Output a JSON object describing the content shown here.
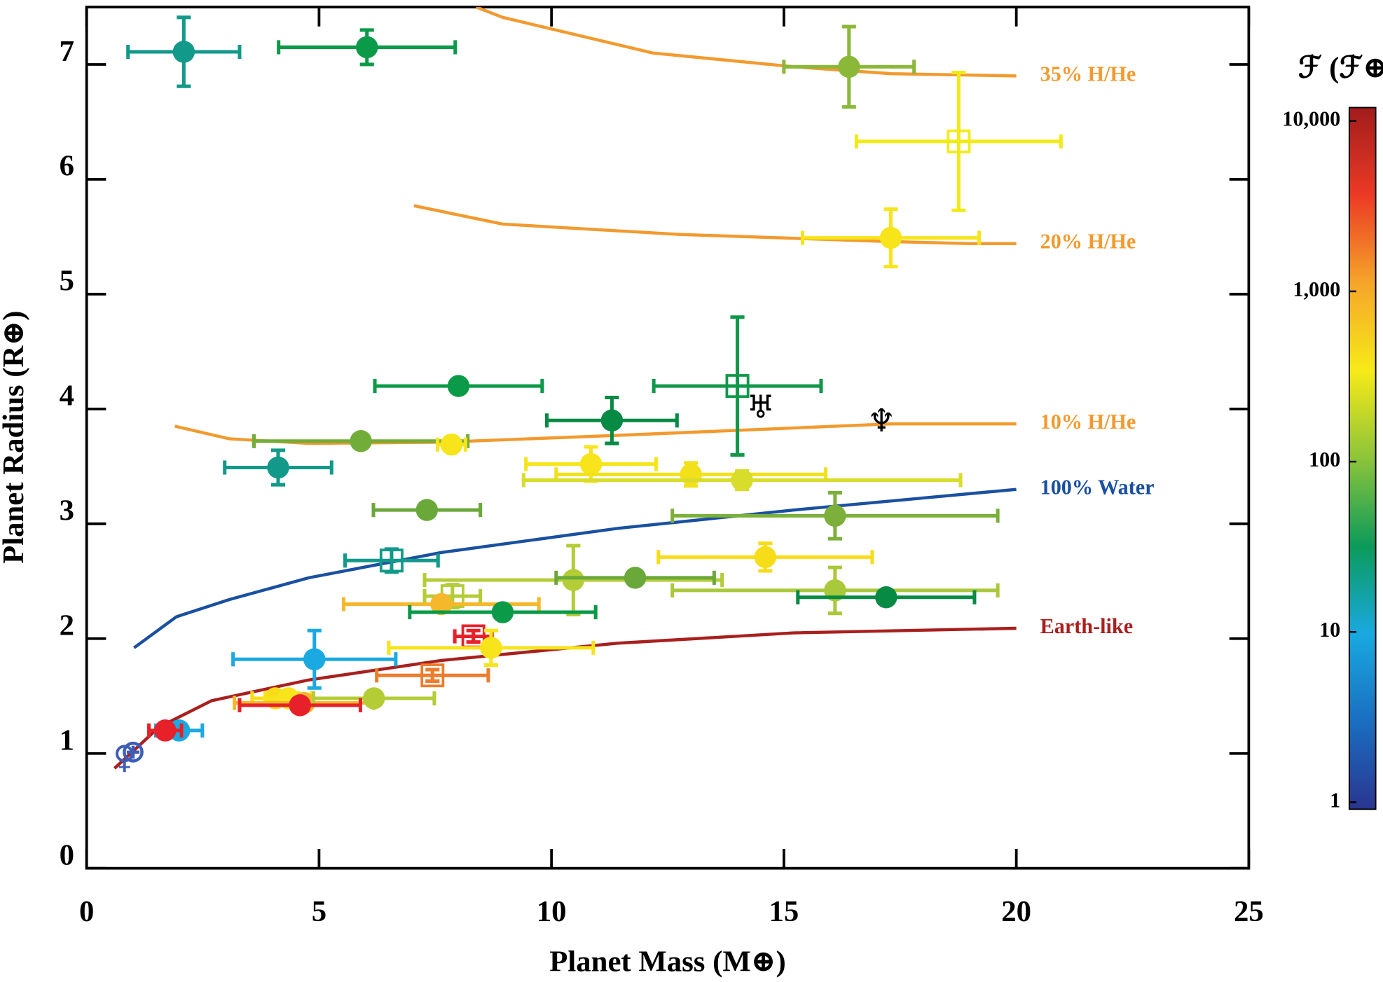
{
  "chart_data": {
    "type": "scatter",
    "xlabel": "Planet Mass (M⊕)",
    "ylabel": "Planet Radius (R⊕)",
    "xlim": [
      0,
      25
    ],
    "ylim": [
      0,
      7.5
    ],
    "xticks": [
      0,
      5,
      10,
      15,
      20,
      25
    ],
    "yticks": [
      0,
      1,
      2,
      3,
      4,
      5,
      6,
      7
    ],
    "points": [
      {
        "x": 2.09,
        "y": 7.11,
        "xerr": 1.2,
        "yerr": 0.3,
        "color": "#12998a",
        "marker": "circle"
      },
      {
        "x": 6.03,
        "y": 7.15,
        "xerr": 1.9,
        "yerr": 0.15,
        "color": "#0b9a48",
        "marker": "circle"
      },
      {
        "x": 16.4,
        "y": 6.98,
        "xerr": 1.4,
        "yerr": 0.35,
        "color": "#8cb83a",
        "marker": "circle"
      },
      {
        "x": 18.76,
        "y": 6.33,
        "xerr": 2.2,
        "yerr": 0.6,
        "color": "#f2ea18",
        "marker": "square"
      },
      {
        "x": 17.3,
        "y": 5.49,
        "xerr": 1.9,
        "yerr": 0.25,
        "color": "#f7e41a",
        "marker": "circle"
      },
      {
        "x": 14.0,
        "y": 4.2,
        "xerr": 1.8,
        "yerr": 0.6,
        "color": "#10984a",
        "marker": "square"
      },
      {
        "x": 8.0,
        "y": 4.2,
        "xerr": 1.8,
        "yerr": 0.05,
        "color": "#0b9a48",
        "marker": "circle"
      },
      {
        "x": 11.3,
        "y": 3.9,
        "xerr": 1.4,
        "yerr": 0.2,
        "color": "#078a44",
        "marker": "circle"
      },
      {
        "x": 5.9,
        "y": 3.72,
        "xerr": 2.3,
        "yerr": 0.05,
        "color": "#72ad3a",
        "marker": "circle"
      },
      {
        "x": 7.85,
        "y": 3.69,
        "xerr": 0.3,
        "yerr": 0.05,
        "color": "#f7e41a",
        "marker": "circle"
      },
      {
        "x": 4.12,
        "y": 3.49,
        "xerr": 1.15,
        "yerr": 0.15,
        "color": "#12998a",
        "marker": "circle"
      },
      {
        "x": 10.85,
        "y": 3.52,
        "xerr": 1.4,
        "yerr": 0.15,
        "color": "#f7e41a",
        "marker": "circle"
      },
      {
        "x": 13.0,
        "y": 3.43,
        "xerr": 2.9,
        "yerr": 0.1,
        "color": "#f2e01a",
        "marker": "circle"
      },
      {
        "x": 14.1,
        "y": 3.38,
        "xerr": 4.7,
        "yerr": 0.08,
        "color": "#d8dc2a",
        "marker": "circle"
      },
      {
        "x": 7.32,
        "y": 3.12,
        "xerr": 1.15,
        "yerr": 0.05,
        "color": "#6aa83a",
        "marker": "circle"
      },
      {
        "x": 16.1,
        "y": 3.07,
        "xerr": 3.5,
        "yerr": 0.2,
        "color": "#7cb03a",
        "marker": "circle"
      },
      {
        "x": 6.56,
        "y": 2.68,
        "xerr": 1.0,
        "yerr": 0.1,
        "color": "#12998a",
        "marker": "square"
      },
      {
        "x": 14.6,
        "y": 2.71,
        "xerr": 2.3,
        "yerr": 0.12,
        "color": "#f7dc18",
        "marker": "circle"
      },
      {
        "x": 10.47,
        "y": 2.51,
        "xerr": 3.2,
        "yerr": 0.3,
        "color": "#b4cc36",
        "marker": "circle"
      },
      {
        "x": 11.8,
        "y": 2.53,
        "xerr": 1.7,
        "yerr": 0.05,
        "color": "#6aa83a",
        "marker": "circle"
      },
      {
        "x": 16.1,
        "y": 2.42,
        "xerr": 3.5,
        "yerr": 0.2,
        "color": "#a9c83a",
        "marker": "circle"
      },
      {
        "x": 17.2,
        "y": 2.36,
        "xerr": 1.9,
        "yerr": 0.05,
        "color": "#078a44",
        "marker": "circle"
      },
      {
        "x": 7.87,
        "y": 2.37,
        "xerr": 0.6,
        "yerr": 0.1,
        "color": "#b4cc36",
        "marker": "square"
      },
      {
        "x": 7.63,
        "y": 2.3,
        "xerr": 2.1,
        "yerr": 0.05,
        "color": "#f5b82a",
        "marker": "circle"
      },
      {
        "x": 8.95,
        "y": 2.23,
        "xerr": 2.0,
        "yerr": 0.05,
        "color": "#0b9a48",
        "marker": "circle"
      },
      {
        "x": 8.32,
        "y": 2.02,
        "xerr": 0.4,
        "yerr": 0.05,
        "color": "#e8202a",
        "marker": "square"
      },
      {
        "x": 8.7,
        "y": 1.92,
        "xerr": 2.2,
        "yerr": 0.15,
        "color": "#f7e41a",
        "marker": "circle"
      },
      {
        "x": 4.9,
        "y": 1.82,
        "xerr": 1.75,
        "yerr": 0.25,
        "color": "#1ba9e1",
        "marker": "circle"
      },
      {
        "x": 7.44,
        "y": 1.68,
        "xerr": 1.2,
        "yerr": 0.05,
        "color": "#eb7d2e",
        "marker": "square"
      },
      {
        "x": 4.06,
        "y": 1.48,
        "xerr": 0.5,
        "yerr": 0.05,
        "color": "#f7dc18",
        "marker": "circle"
      },
      {
        "x": 4.34,
        "y": 1.48,
        "xerr": 0.5,
        "yerr": 0.05,
        "color": "#f7e41a",
        "marker": "circle"
      },
      {
        "x": 4.68,
        "y": 1.44,
        "xerr": 1.5,
        "yerr": 0.05,
        "color": "#f5b82a",
        "marker": "circle"
      },
      {
        "x": 6.18,
        "y": 1.48,
        "xerr": 1.3,
        "yerr": 0.05,
        "color": "#b4cc36",
        "marker": "circle"
      },
      {
        "x": 4.59,
        "y": 1.42,
        "xerr": 1.3,
        "yerr": 0.03,
        "color": "#e8202a",
        "marker": "circle"
      },
      {
        "x": 1.99,
        "y": 1.2,
        "xerr": 0.5,
        "yerr": 0.03,
        "color": "#1ba9e1",
        "marker": "circle"
      },
      {
        "x": 1.69,
        "y": 1.2,
        "xerr": 0.35,
        "yerr": 0.05,
        "color": "#e8202a",
        "marker": "circle"
      }
    ],
    "models": [
      {
        "name": "35% H/He",
        "color": "#f29a2e",
        "x": [
          8.38,
          8.95,
          12.18,
          15.21,
          17.3,
          20.0
        ],
        "y": [
          7.5,
          7.41,
          7.1,
          6.98,
          6.92,
          6.9
        ]
      },
      {
        "name": "20% H/He",
        "color": "#f29a2e",
        "x": [
          7.04,
          8.95,
          12.75,
          17.11,
          18.99,
          20.0
        ],
        "y": [
          5.77,
          5.61,
          5.52,
          5.46,
          5.44,
          5.44
        ]
      },
      {
        "name": "10% H/He",
        "color": "#f29a2e",
        "x": [
          1.9,
          3.07,
          4.78,
          7.63,
          11.42,
          17.3,
          20.0
        ],
        "y": [
          3.85,
          3.74,
          3.7,
          3.71,
          3.77,
          3.87,
          3.87
        ]
      },
      {
        "name": "100% Water",
        "color": "#1a50a0",
        "x": [
          1.02,
          1.93,
          3.07,
          4.78,
          7.63,
          11.42,
          15.21,
          20.0
        ],
        "y": [
          1.92,
          2.19,
          2.34,
          2.53,
          2.75,
          2.96,
          3.12,
          3.3
        ]
      },
      {
        "name": "Earth-like",
        "color": "#a8201e",
        "x": [
          0.6,
          1.56,
          2.69,
          4.78,
          7.63,
          11.42,
          15.21,
          20.0
        ],
        "y": [
          0.87,
          1.23,
          1.46,
          1.64,
          1.81,
          1.96,
          2.05,
          2.09
        ]
      }
    ],
    "solar_system": [
      {
        "symbol": "♀",
        "x": 0.815,
        "y": 0.95,
        "color": "#3d5db8"
      },
      {
        "symbol": "⊕",
        "x": 1.0,
        "y": 1.0,
        "color": "#3d5db8"
      },
      {
        "symbol": "♅",
        "x": 14.5,
        "y": 4.0,
        "color": "#000000"
      },
      {
        "symbol": "♆",
        "x": 17.1,
        "y": 3.88,
        "color": "#000000"
      }
    ],
    "colorbar": {
      "label": "ℱ (ℱ⊕)",
      "log": true,
      "lim": [
        0.91,
        12000
      ],
      "colors": [
        "#2a3590",
        "#1a6ec0",
        "#19a9e0",
        "#0c9a5a",
        "#8cc43a",
        "#f7ea18",
        "#f5a52a",
        "#ec3a24",
        "#a11c1c"
      ],
      "ticks": [
        1,
        10,
        100,
        {
          "value": 1000,
          "label": "1,000"
        },
        {
          "value": 10000,
          "label": "10,000"
        }
      ]
    }
  }
}
